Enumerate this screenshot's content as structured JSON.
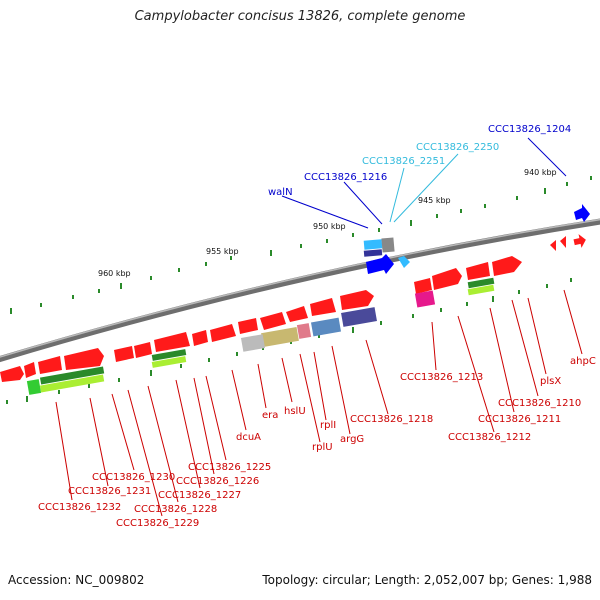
{
  "title": "Campylobacter concisus 13826, complete genome",
  "footer": {
    "accession": "Accession: NC_009802",
    "stats": "Topology: circular; Length: 2,052,007 bp; Genes: 1,988"
  },
  "colors": {
    "backbone": "#808080",
    "gene_red": "#ff0000",
    "label_red": "#cc0000",
    "label_blue": "#0000cc",
    "label_cyan": "#33bbdd",
    "tick": "#2a8a2a"
  },
  "scale_ticks": [
    "940 kbp",
    "945 kbp",
    "950 kbp",
    "955 kbp",
    "960 kbp"
  ],
  "labels_top": [
    {
      "text": "CCC13826_1204",
      "color": "blue"
    },
    {
      "text": "CCC13826_2250",
      "color": "cyan"
    },
    {
      "text": "CCC13826_2251",
      "color": "cyan"
    },
    {
      "text": "CCC13826_1216",
      "color": "blue"
    },
    {
      "text": "walN",
      "color": "blue"
    }
  ],
  "labels_bottom": [
    "ahpC",
    "plsX",
    "CCC13826_1210",
    "CCC13826_1211",
    "CCC13826_1212",
    "CCC13826_1213",
    "CCC13826_1218",
    "argG",
    "rplI",
    "rplU",
    "hslU",
    "era",
    "dcuA",
    "CCC13826_1225",
    "CCC13826_1226",
    "CCC13826_1227",
    "CCC13826_1228",
    "CCC13826_1229",
    "CCC13826_1230",
    "CCC13826_1231",
    "CCC13826_1232"
  ]
}
